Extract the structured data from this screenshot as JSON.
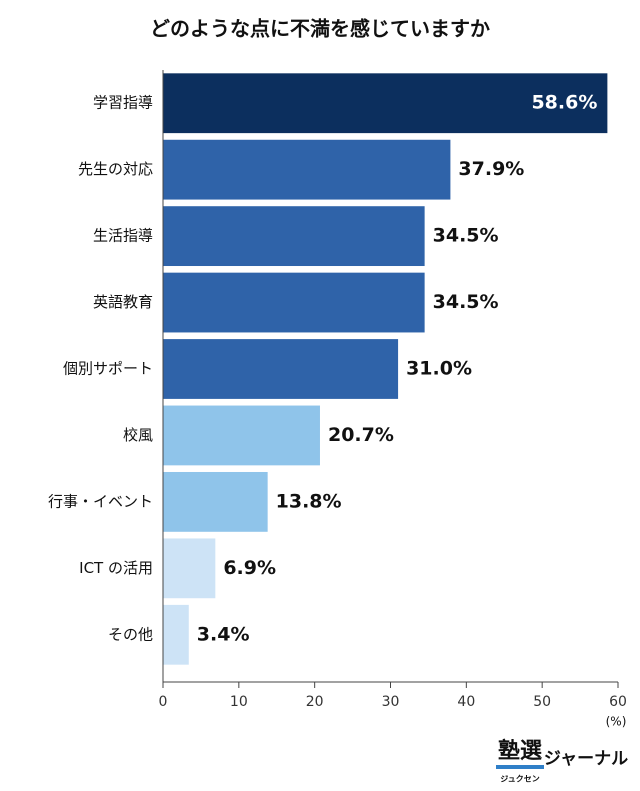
{
  "chart_data": {
    "type": "barh",
    "title": "どのような点に不満を感じていますか",
    "categories": [
      "学習指導",
      "先生の対応",
      "生活指導",
      "英語教育",
      "個別サポート",
      "校風",
      "行事・イベント",
      "ICT の活用",
      "その他"
    ],
    "values": [
      58.6,
      37.9,
      34.5,
      34.5,
      31.0,
      20.7,
      13.8,
      6.9,
      3.4
    ],
    "value_labels": [
      "58.6%",
      "37.9%",
      "34.5%",
      "34.5%",
      "31.0%",
      "20.7%",
      "13.8%",
      "6.9%",
      "3.4%"
    ],
    "colors": [
      "#0c2f5e",
      "#2f63a9",
      "#2f63a9",
      "#2f63a9",
      "#2f63a9",
      "#8fc4ea",
      "#8fc4ea",
      "#cde3f6",
      "#cde3f6"
    ],
    "xlim": [
      0,
      60
    ],
    "xticks": [
      0,
      10,
      20,
      30,
      40,
      50,
      60
    ],
    "x_unit": "(%)"
  },
  "logo": {
    "main": "塾選",
    "ruby": "ジュクセン",
    "suffix": "ジャーナル"
  }
}
